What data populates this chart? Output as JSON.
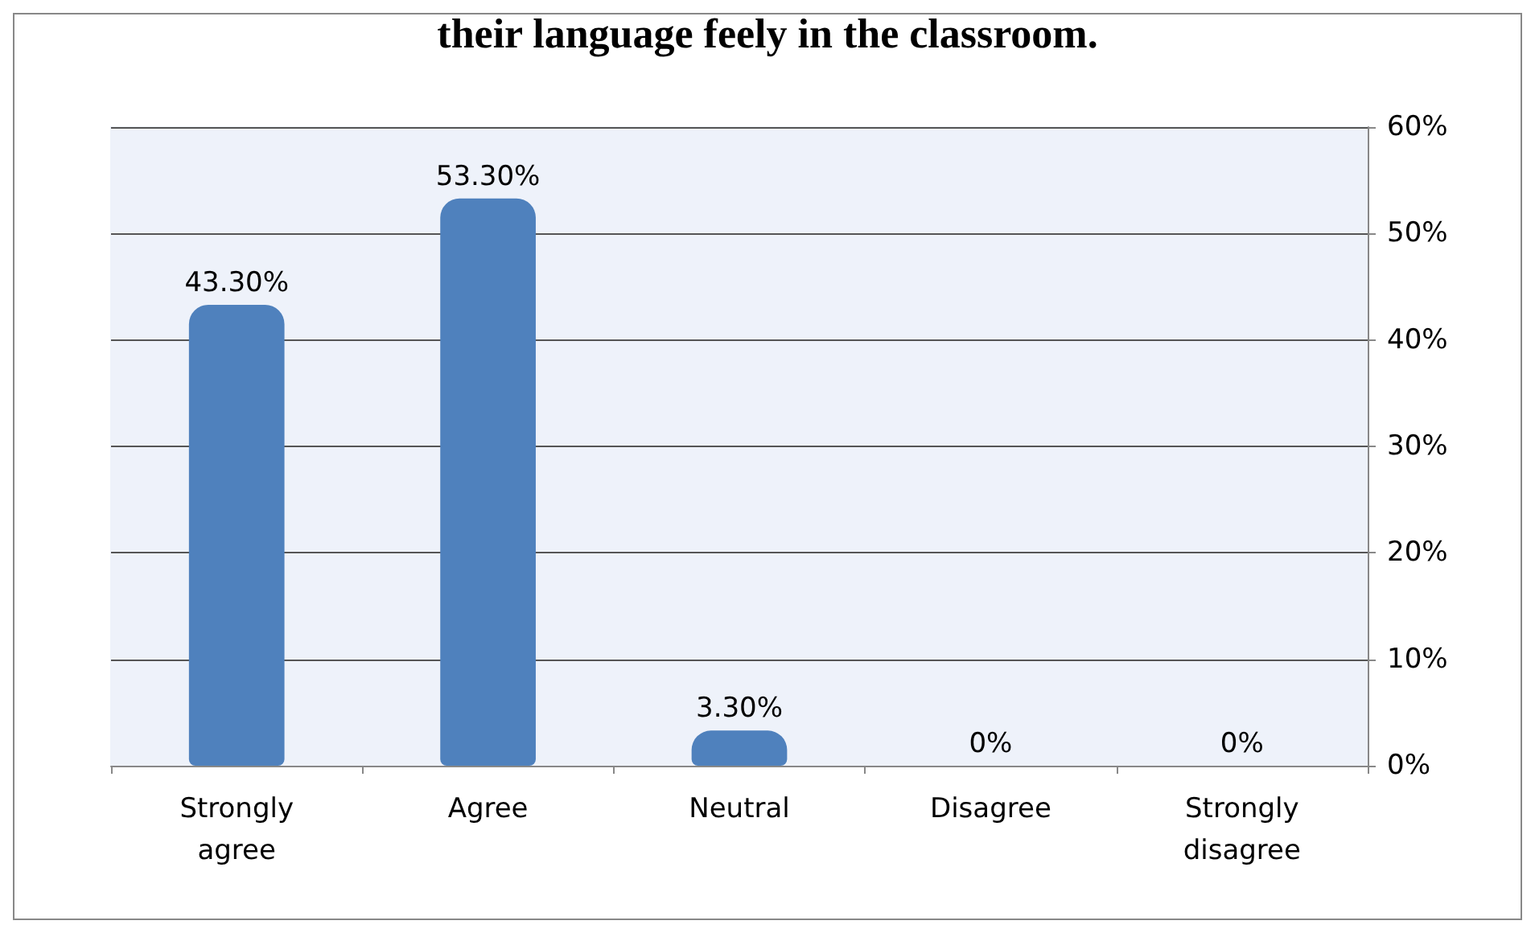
{
  "chart_data": {
    "type": "bar",
    "title": "their language feely in the classroom.",
    "categories": [
      "Strongly\nagree",
      "Agree",
      "Neutral",
      "Disagree",
      "Strongly\ndisagree"
    ],
    "values": [
      43.3,
      53.3,
      3.3,
      0,
      0
    ],
    "value_labels": [
      "43.30%",
      "53.30%",
      "3.30%",
      "0%",
      "0%"
    ],
    "color": "#4f81bd",
    "ylim": [
      0,
      60
    ],
    "yticks": [
      {
        "value": 0,
        "label": "0%"
      },
      {
        "value": 10,
        "label": "10%"
      },
      {
        "value": 20,
        "label": "20%"
      },
      {
        "value": 30,
        "label": "30%"
      },
      {
        "value": 40,
        "label": "40%"
      },
      {
        "value": 50,
        "label": "50%"
      },
      {
        "value": 60,
        "label": "60%"
      }
    ],
    "grid": "y"
  }
}
